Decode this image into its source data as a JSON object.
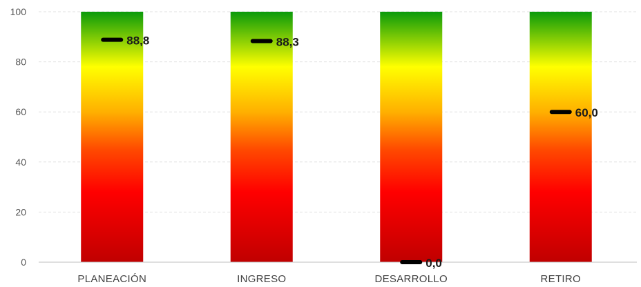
{
  "chart_data": {
    "type": "bar",
    "title": "",
    "xlabel": "",
    "ylabel": "",
    "categories": [
      "PLANEACIÓN",
      "INGRESO",
      "DESARROLLO",
      "RETIRO"
    ],
    "series": [
      {
        "values": [
          100,
          100,
          100,
          100
        ]
      },
      {
        "values": [
          88.8,
          88.3,
          0.0,
          60.0
        ]
      }
    ],
    "value_labels": [
      "88,8",
      "88,3",
      "0,0",
      "60,0"
    ],
    "ylim": [
      0,
      100
    ],
    "yticks": [
      "0",
      "20",
      "40",
      "60",
      "80",
      "100"
    ],
    "grid": true,
    "legend": "none",
    "colors": {
      "gradient_top": "#0a9a0a",
      "gradient_upper": "#ffff00",
      "gradient_mid": "#ff5a00",
      "gradient_low": "#ff0000",
      "gradient_bottom": "#c00000",
      "marker": "#000000",
      "grid": "#e0e0e0",
      "axis": "#bfbfbf"
    }
  }
}
